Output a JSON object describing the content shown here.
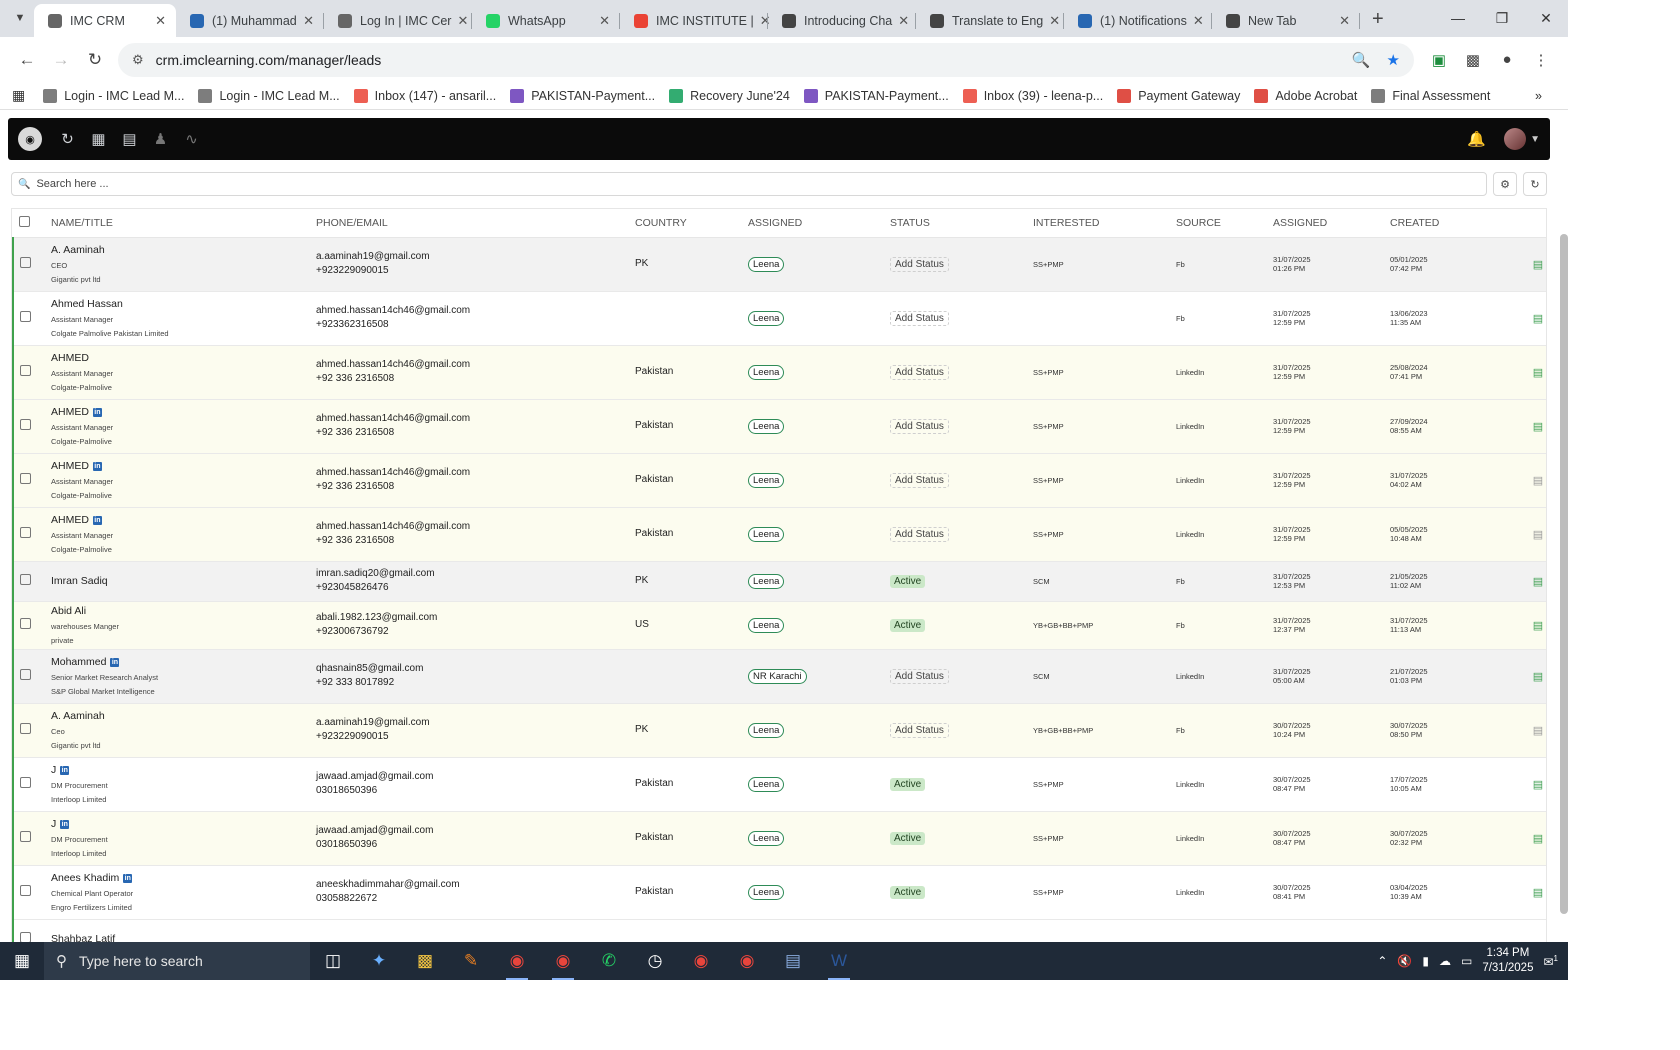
{
  "browser": {
    "tabs": [
      {
        "label": "IMC CRM",
        "icon": "imc-favicon",
        "color": "#666666",
        "active": true
      },
      {
        "label": "(1) Muhammad",
        "icon": "linkedin-favicon",
        "color": "#2867b2"
      },
      {
        "label": "Log In | IMC Cer",
        "icon": "imc-favicon",
        "color": "#666666"
      },
      {
        "label": "WhatsApp",
        "icon": "whatsapp-favicon",
        "color": "#25d366"
      },
      {
        "label": "IMC INSTITUTE |",
        "icon": "gmail-favicon",
        "color": "#ea4335"
      },
      {
        "label": "Introducing Cha",
        "icon": "openai-favicon",
        "color": "#444444"
      },
      {
        "label": "Translate to Eng",
        "icon": "openai-favicon",
        "color": "#444444"
      },
      {
        "label": "(1) Notifications",
        "icon": "linkedin-favicon",
        "color": "#2867b2"
      },
      {
        "label": "New Tab",
        "icon": "chrome-favicon",
        "color": "#444444"
      }
    ],
    "url": "crm.imclearning.com/manager/leads",
    "bookmarks": [
      {
        "label": "Login - IMC Lead M...",
        "icon": "imc-icon",
        "color": "#666666"
      },
      {
        "label": "Login - IMC Lead M...",
        "icon": "imc-icon",
        "color": "#666666"
      },
      {
        "label": "Inbox (147) - ansaril...",
        "icon": "gmail-icon",
        "color": "#ea4335"
      },
      {
        "label": "PAKISTAN-Payment...",
        "icon": "forms-icon",
        "color": "#673ab7"
      },
      {
        "label": "Recovery June'24",
        "icon": "sheets-icon",
        "color": "#0f9d58"
      },
      {
        "label": "PAKISTAN-Payment...",
        "icon": "forms-icon",
        "color": "#673ab7"
      },
      {
        "label": "Inbox (39) - leena-p...",
        "icon": "gmail-icon",
        "color": "#ea4335"
      },
      {
        "label": "Payment Gateway",
        "icon": "payment-icon",
        "color": "#d93025"
      },
      {
        "label": "Adobe Acrobat",
        "icon": "acrobat-icon",
        "color": "#d93025"
      },
      {
        "label": "Final Assessment",
        "icon": "imc-icon",
        "color": "#666666"
      }
    ]
  },
  "search": {
    "placeholder": "Search here ..."
  },
  "table": {
    "headers": [
      "NAME/TITLE",
      "PHONE/EMAIL",
      "COUNTRY",
      "ASSIGNED",
      "STATUS",
      "INTERESTED",
      "SOURCE",
      "ASSIGNED",
      "CREATED"
    ],
    "rows": [
      {
        "name": "A. Aaminah",
        "linkedin": false,
        "title": "CEO",
        "company": "Gigantic pvt ltd",
        "email": "a.aaminah19@gmail.com",
        "phone": "+923229090015",
        "country": "PK",
        "assigned": "Leena",
        "status": "Add Status",
        "interested": "SS+PMP",
        "source": "Fb",
        "assigned_date": "31/07/2025",
        "assigned_time": "01:26 PM",
        "created_date": "05/01/2025",
        "created_time": "07:42 PM",
        "bg": "gray",
        "doc": "green"
      },
      {
        "name": "Ahmed Hassan",
        "linkedin": false,
        "title": "Assistant Manager",
        "company": "Colgate Palmolive Pakistan Limited",
        "email": "ahmed.hassan14ch46@gmail.com",
        "phone": "+923362316508",
        "country": "",
        "assigned": "Leena",
        "status": "Add Status",
        "interested": "",
        "source": "Fb",
        "assigned_date": "31/07/2025",
        "assigned_time": "12:59 PM",
        "created_date": "13/06/2023",
        "created_time": "11:35 AM",
        "bg": "white",
        "doc": "green"
      },
      {
        "name": "AHMED",
        "linkedin": false,
        "title": "Assistant Manager",
        "company": "Colgate-Palmolive",
        "email": "ahmed.hassan14ch46@gmail.com",
        "phone": "+92 336 2316508",
        "country": "Pakistan",
        "assigned": "Leena",
        "status": "Add Status",
        "interested": "SS+PMP",
        "source": "LinkedIn",
        "assigned_date": "31/07/2025",
        "assigned_time": "12:59 PM",
        "created_date": "25/08/2024",
        "created_time": "07:41 PM",
        "bg": "yellow",
        "doc": "green"
      },
      {
        "name": "AHMED",
        "linkedin": true,
        "title": "Assistant Manager",
        "company": "Colgate-Palmolive",
        "email": "ahmed.hassan14ch46@gmail.com",
        "phone": "+92 336 2316508",
        "country": "Pakistan",
        "assigned": "Leena",
        "status": "Add Status",
        "interested": "SS+PMP",
        "source": "LinkedIn",
        "assigned_date": "31/07/2025",
        "assigned_time": "12:59 PM",
        "created_date": "27/09/2024",
        "created_time": "08:55 AM",
        "bg": "yellow",
        "doc": "green"
      },
      {
        "name": "AHMED",
        "linkedin": true,
        "title": "Assistant Manager",
        "company": "Colgate-Palmolive",
        "email": "ahmed.hassan14ch46@gmail.com",
        "phone": "+92 336 2316508",
        "country": "Pakistan",
        "assigned": "Leena",
        "status": "Add Status",
        "interested": "SS+PMP",
        "source": "LinkedIn",
        "assigned_date": "31/07/2025",
        "assigned_time": "12:59 PM",
        "created_date": "31/07/2025",
        "created_time": "04:02 AM",
        "bg": "yellow",
        "doc": "gray"
      },
      {
        "name": "AHMED",
        "linkedin": true,
        "title": "Assistant Manager",
        "company": "Colgate-Palmolive",
        "email": "ahmed.hassan14ch46@gmail.com",
        "phone": "+92 336 2316508",
        "country": "Pakistan",
        "assigned": "Leena",
        "status": "Add Status",
        "interested": "SS+PMP",
        "source": "LinkedIn",
        "assigned_date": "31/07/2025",
        "assigned_time": "12:59 PM",
        "created_date": "05/05/2025",
        "created_time": "10:48 AM",
        "bg": "yellow",
        "doc": "gray"
      },
      {
        "name": "Imran Sadiq",
        "linkedin": false,
        "title": "",
        "company": "",
        "email": "imran.sadiq20@gmail.com",
        "phone": "+923045826476",
        "country": "PK",
        "assigned": "Leena",
        "status": "Active",
        "interested": "SCM",
        "source": "Fb",
        "assigned_date": "31/07/2025",
        "assigned_time": "12:53 PM",
        "created_date": "21/05/2025",
        "created_time": "11:02 AM",
        "bg": "gray",
        "doc": "green"
      },
      {
        "name": "Abid Ali",
        "linkedin": false,
        "title": "warehouses Manger",
        "company": "private",
        "email": "abali.1982.123@gmail.com",
        "phone": "+923006736792",
        "country": "US",
        "assigned": "Leena",
        "status": "Active",
        "interested": "YB+GB+BB+PMP",
        "source": "Fb",
        "assigned_date": "31/07/2025",
        "assigned_time": "12:37 PM",
        "created_date": "31/07/2025",
        "created_time": "11:13 AM",
        "bg": "yellow",
        "doc": "green"
      },
      {
        "name": "Mohammed",
        "linkedin": true,
        "title": "Senior Market Research Analyst",
        "company": "S&P Global Market Intelligence",
        "email": "qhasnain85@gmail.com",
        "phone": "+92 333 8017892",
        "country": "",
        "assigned": "NR Karachi",
        "status": "Add Status",
        "interested": "SCM",
        "source": "LinkedIn",
        "assigned_date": "31/07/2025",
        "assigned_time": "05:00 AM",
        "created_date": "21/07/2025",
        "created_time": "01:03 PM",
        "bg": "gray",
        "doc": "green"
      },
      {
        "name": "A. Aaminah",
        "linkedin": false,
        "title": "Ceo",
        "company": "Gigantic pvt ltd",
        "email": "a.aaminah19@gmail.com",
        "phone": "+923229090015",
        "country": "PK",
        "assigned": "Leena",
        "status": "Add Status",
        "interested": "YB+GB+BB+PMP",
        "source": "Fb",
        "assigned_date": "30/07/2025",
        "assigned_time": "10:24 PM",
        "created_date": "30/07/2025",
        "created_time": "08:50 PM",
        "bg": "yellow",
        "doc": "gray"
      },
      {
        "name": "J",
        "linkedin": true,
        "title": "DM Procurement",
        "company": "Interloop Limited",
        "email": "jawaad.amjad@gmail.com",
        "phone": "03018650396",
        "country": "Pakistan",
        "assigned": "Leena",
        "status": "Active",
        "interested": "SS+PMP",
        "source": "LinkedIn",
        "assigned_date": "30/07/2025",
        "assigned_time": "08:47 PM",
        "created_date": "17/07/2025",
        "created_time": "10:05 AM",
        "bg": "white",
        "doc": "green"
      },
      {
        "name": "J",
        "linkedin": true,
        "title": "DM Procurement",
        "company": "Interloop Limited",
        "email": "jawaad.amjad@gmail.com",
        "phone": "03018650396",
        "country": "Pakistan",
        "assigned": "Leena",
        "status": "Active",
        "interested": "SS+PMP",
        "source": "LinkedIn",
        "assigned_date": "30/07/2025",
        "assigned_time": "08:47 PM",
        "created_date": "30/07/2025",
        "created_time": "02:32 PM",
        "bg": "yellow",
        "doc": "green"
      },
      {
        "name": "Anees Khadim",
        "linkedin": true,
        "title": "Chemical Plant Operator",
        "company": "Engro Fertilizers Limited",
        "email": "aneeskhadimmahar@gmail.com",
        "phone": "03058822672",
        "country": "Pakistan",
        "assigned": "Leena",
        "status": "Active",
        "interested": "SS+PMP",
        "source": "LinkedIn",
        "assigned_date": "30/07/2025",
        "assigned_time": "08:41 PM",
        "created_date": "03/04/2025",
        "created_time": "10:39 AM",
        "bg": "white",
        "doc": "green"
      },
      {
        "name": "Shahbaz Latif",
        "linkedin": false,
        "title": "",
        "company": "",
        "email": "",
        "phone": "",
        "country": "",
        "assigned": "",
        "status": "",
        "interested": "",
        "source": "",
        "assigned_date": "",
        "assigned_time": "",
        "created_date": "",
        "created_time": "",
        "bg": "white",
        "doc": "none"
      }
    ]
  },
  "taskbar": {
    "search_placeholder": "Type here to search",
    "time": "1:34 PM",
    "date": "7/31/2025",
    "notification_count": "1"
  },
  "colors": {
    "accent_green": "#3fa14c",
    "appbar": "#0b0b0b",
    "active_badge": "#cbe8c8"
  }
}
